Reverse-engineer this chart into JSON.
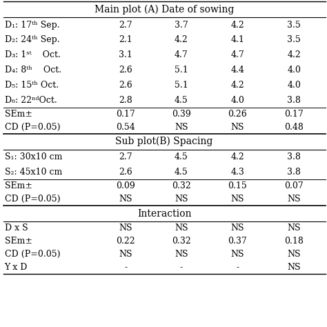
{
  "section1_header": "Main plot (A) Date of sowing",
  "section2_header": "Sub plot(B) Spacing",
  "section3_header": "Interaction",
  "rows_main": [
    [
      "D₁: 17ᵗʰ Sep.",
      "2.7",
      "3.7",
      "4.2",
      "3.5"
    ],
    [
      "D₂: 24ᵗʰ Sep.",
      "2.1",
      "4.2",
      "4.1",
      "3.5"
    ],
    [
      "D₃: 1ˢᵗ    Oct.",
      "3.1",
      "4.7",
      "4.7",
      "4.2"
    ],
    [
      "D₄: 8ᵗʰ    Oct.",
      "2.6",
      "5.1",
      "4.4",
      "4.0"
    ],
    [
      "D₅: 15ᵗʰ Oct.",
      "2.6",
      "5.1",
      "4.2",
      "4.0"
    ],
    [
      "D₆: 22ⁿᵈOct.",
      "2.8",
      "4.5",
      "4.0",
      "3.8"
    ]
  ],
  "rows_main_stat": [
    [
      "SEm±",
      "0.17",
      "0.39",
      "0.26",
      "0.17"
    ],
    [
      "CD (P=0.05)",
      "0.54",
      "NS",
      "NS",
      "0.48"
    ]
  ],
  "rows_sub": [
    [
      "S₁: 30x10 cm",
      "2.7",
      "4.5",
      "4.2",
      "3.8"
    ],
    [
      "S₂: 45x10 cm",
      "2.6",
      "4.5",
      "4.3",
      "3.8"
    ]
  ],
  "rows_sub_stat": [
    [
      "SEm±",
      "0.09",
      "0.32",
      "0.15",
      "0.07"
    ],
    [
      "CD (P=0.05)",
      "NS",
      "NS",
      "NS",
      "NS"
    ]
  ],
  "rows_interaction": [
    [
      "D x S",
      "NS",
      "NS",
      "NS",
      "NS"
    ],
    [
      "SEm±",
      "0.22",
      "0.32",
      "0.37",
      "0.18"
    ],
    [
      "CD (P=0.05)",
      "NS",
      "NS",
      "NS",
      "NS"
    ],
    [
      "Y x D",
      "-",
      "-",
      "-",
      "NS"
    ]
  ],
  "bg_color": "#ffffff",
  "font_size": 9.0,
  "header_font_size": 10.0
}
